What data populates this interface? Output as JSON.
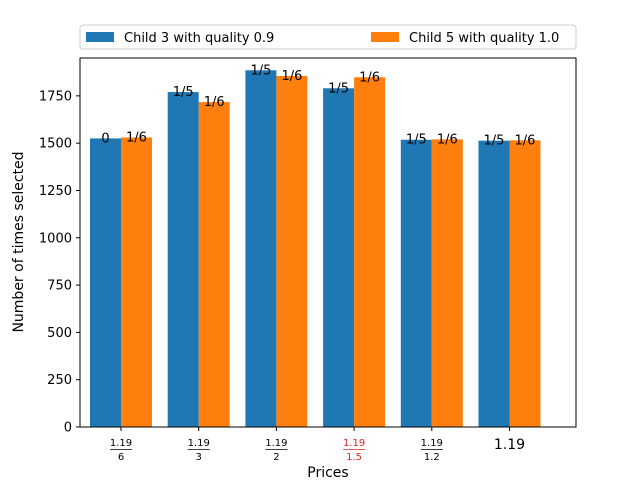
{
  "chart_data": {
    "type": "bar",
    "xlabel": "Prices",
    "ylabel": "Number of times selected",
    "ylim": [
      0,
      1950
    ],
    "yticks": [
      0,
      250,
      500,
      750,
      1000,
      1250,
      1500,
      1750
    ],
    "categories": [
      {
        "kind": "frac",
        "num": "1.19",
        "den": "6",
        "color": "#000000"
      },
      {
        "kind": "frac",
        "num": "1.19",
        "den": "3",
        "color": "#000000"
      },
      {
        "kind": "frac",
        "num": "1.19",
        "den": "2",
        "color": "#000000"
      },
      {
        "kind": "frac",
        "num": "1.19",
        "den": "1.5",
        "color": "#d62728"
      },
      {
        "kind": "frac",
        "num": "1.19",
        "den": "1.2",
        "color": "#000000"
      },
      {
        "kind": "plain",
        "text": "1.19",
        "color": "#000000"
      }
    ],
    "series": [
      {
        "name": "Child 3 with quality 0.9",
        "color": "#1f77b4",
        "values": [
          1525,
          1770,
          1885,
          1790,
          1518,
          1513
        ],
        "labels": [
          "0",
          "1/5",
          "1/5",
          "1/5",
          "1/5",
          "1/5"
        ]
      },
      {
        "name": "Child 5 with quality 1.0",
        "color": "#ff7f0e",
        "values": [
          1530,
          1717,
          1855,
          1848,
          1520,
          1515
        ],
        "labels": [
          "1/6",
          "1/6",
          "1/6",
          "1/6",
          "1/6",
          "1/6"
        ]
      }
    ],
    "legend_position": "top, above plot",
    "grid": false
  }
}
